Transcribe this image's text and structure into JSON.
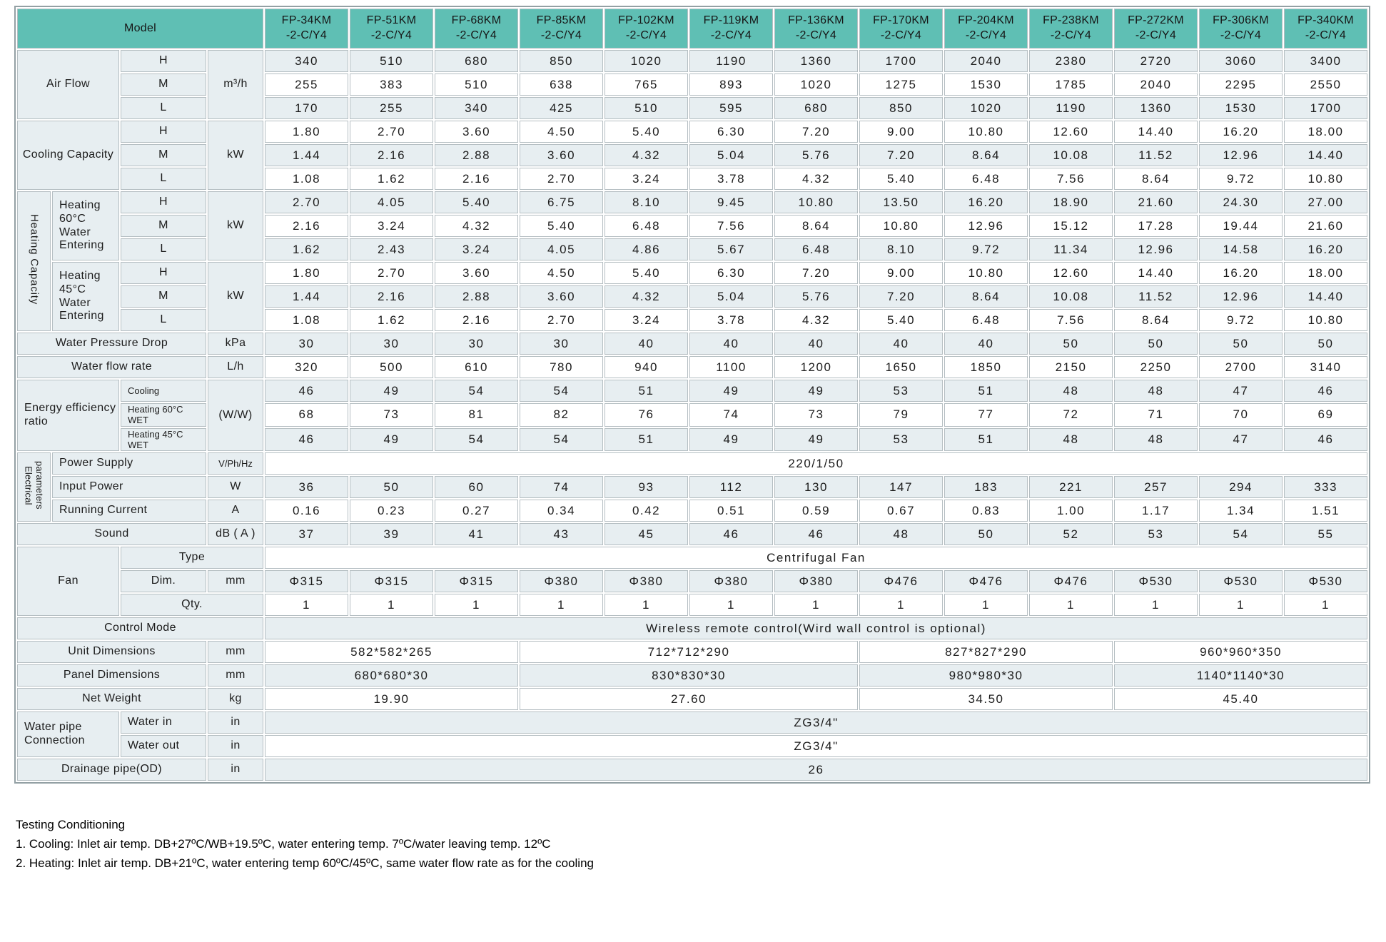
{
  "colors": {
    "header_teal": "#5FBFB4",
    "row_stripe": "#E7EEF1"
  },
  "table": {
    "header": {
      "model_label": "Model",
      "models": [
        {
          "name": "FP-34KM",
          "suffix": "-2-C/Y4"
        },
        {
          "name": "FP-51KM",
          "suffix": "-2-C/Y4"
        },
        {
          "name": "FP-68KM",
          "suffix": "-2-C/Y4"
        },
        {
          "name": "FP-85KM",
          "suffix": "-2-C/Y4"
        },
        {
          "name": "FP-102KM",
          "suffix": "-2-C/Y4"
        },
        {
          "name": "FP-119KM",
          "suffix": "-2-C/Y4"
        },
        {
          "name": "FP-136KM",
          "suffix": "-2-C/Y4"
        },
        {
          "name": "FP-170KM",
          "suffix": "-2-C/Y4"
        },
        {
          "name": "FP-204KM",
          "suffix": "-2-C/Y4"
        },
        {
          "name": "FP-238KM",
          "suffix": "-2-C/Y4"
        },
        {
          "name": "FP-272KM",
          "suffix": "-2-C/Y4"
        },
        {
          "name": "FP-306KM",
          "suffix": "-2-C/Y4"
        },
        {
          "name": "FP-340KM",
          "suffix": "-2-C/Y4"
        }
      ]
    },
    "rows": [
      {
        "s": "l",
        "labels": [
          {
            "t": "Air Flow",
            "c": 2,
            "r": 3
          },
          {
            "t": "H"
          },
          {
            "t": "m³/h",
            "r": 3
          }
        ],
        "values": [
          "340",
          "510",
          "680",
          "850",
          "1020",
          "1190",
          "1360",
          "1700",
          "2040",
          "2380",
          "2720",
          "3060",
          "3400"
        ]
      },
      {
        "s": "w",
        "labels": [
          {
            "t": "M"
          }
        ],
        "values": [
          "255",
          "383",
          "510",
          "638",
          "765",
          "893",
          "1020",
          "1275",
          "1530",
          "1785",
          "2040",
          "2295",
          "2550"
        ]
      },
      {
        "s": "l",
        "labels": [
          {
            "t": "L"
          }
        ],
        "values": [
          "170",
          "255",
          "340",
          "425",
          "510",
          "595",
          "680",
          "850",
          "1020",
          "1190",
          "1360",
          "1530",
          "1700"
        ]
      },
      {
        "s": "w",
        "labels": [
          {
            "t": "Cooling Capacity",
            "c": 2,
            "r": 3
          },
          {
            "t": "H"
          },
          {
            "t": "kW",
            "r": 3
          }
        ],
        "values": [
          "1.80",
          "2.70",
          "3.60",
          "4.50",
          "5.40",
          "6.30",
          "7.20",
          "9.00",
          "10.80",
          "12.60",
          "14.40",
          "16.20",
          "18.00"
        ]
      },
      {
        "s": "l",
        "labels": [
          {
            "t": "M"
          }
        ],
        "values": [
          "1.44",
          "2.16",
          "2.88",
          "3.60",
          "4.32",
          "5.04",
          "5.76",
          "7.20",
          "8.64",
          "10.08",
          "11.52",
          "12.96",
          "14.40"
        ]
      },
      {
        "s": "w",
        "labels": [
          {
            "t": "L"
          }
        ],
        "values": [
          "1.08",
          "1.62",
          "2.16",
          "2.70",
          "3.24",
          "3.78",
          "4.32",
          "5.40",
          "6.48",
          "7.56",
          "8.64",
          "9.72",
          "10.80"
        ]
      },
      {
        "s": "l",
        "labels": [
          {
            "t": "Heating Capacity",
            "r": 6,
            "k": "vtc"
          },
          {
            "t": "Heating 60°C Water Entering",
            "r": 3,
            "k": "lft"
          },
          {
            "t": "H"
          },
          {
            "t": "kW",
            "r": 3
          }
        ],
        "values": [
          "2.70",
          "4.05",
          "5.40",
          "6.75",
          "8.10",
          "9.45",
          "10.80",
          "13.50",
          "16.20",
          "18.90",
          "21.60",
          "24.30",
          "27.00"
        ]
      },
      {
        "s": "w",
        "labels": [
          {
            "t": "M"
          }
        ],
        "values": [
          "2.16",
          "3.24",
          "4.32",
          "5.40",
          "6.48",
          "7.56",
          "8.64",
          "10.80",
          "12.96",
          "15.12",
          "17.28",
          "19.44",
          "21.60"
        ]
      },
      {
        "s": "l",
        "labels": [
          {
            "t": "L"
          }
        ],
        "values": [
          "1.62",
          "2.43",
          "3.24",
          "4.05",
          "4.86",
          "5.67",
          "6.48",
          "8.10",
          "9.72",
          "11.34",
          "12.96",
          "14.58",
          "16.20"
        ]
      },
      {
        "s": "w",
        "labels": [
          {
            "t": "Heating 45°C Water Entering",
            "r": 3,
            "k": "lft"
          },
          {
            "t": "H"
          },
          {
            "t": "kW",
            "r": 3
          }
        ],
        "values": [
          "1.80",
          "2.70",
          "3.60",
          "4.50",
          "5.40",
          "6.30",
          "7.20",
          "9.00",
          "10.80",
          "12.60",
          "14.40",
          "16.20",
          "18.00"
        ]
      },
      {
        "s": "l",
        "labels": [
          {
            "t": "M"
          }
        ],
        "values": [
          "1.44",
          "2.16",
          "2.88",
          "3.60",
          "4.32",
          "5.04",
          "5.76",
          "7.20",
          "8.64",
          "10.08",
          "11.52",
          "12.96",
          "14.40"
        ]
      },
      {
        "s": "w",
        "labels": [
          {
            "t": "L"
          }
        ],
        "values": [
          "1.08",
          "1.62",
          "2.16",
          "2.70",
          "3.24",
          "3.78",
          "4.32",
          "5.40",
          "6.48",
          "7.56",
          "8.64",
          "9.72",
          "10.80"
        ]
      },
      {
        "s": "l",
        "labels": [
          {
            "t": "Water Pressure Drop",
            "c": 3
          },
          {
            "t": "kPa"
          }
        ],
        "values": [
          "30",
          "30",
          "30",
          "30",
          "40",
          "40",
          "40",
          "40",
          "40",
          "50",
          "50",
          "50",
          "50"
        ]
      },
      {
        "s": "w",
        "labels": [
          {
            "t": "Water flow rate",
            "c": 3
          },
          {
            "t": "L/h"
          }
        ],
        "values": [
          "320",
          "500",
          "610",
          "780",
          "940",
          "1100",
          "1200",
          "1650",
          "1850",
          "2150",
          "2250",
          "2700",
          "3140"
        ]
      },
      {
        "s": "l",
        "labels": [
          {
            "t": "Energy efficiency ratio",
            "c": 2,
            "r": 3,
            "k": "lft"
          },
          {
            "t": "Cooling",
            "k": "sm lft"
          },
          {
            "t": "(W/W)",
            "r": 3
          }
        ],
        "values": [
          "46",
          "49",
          "54",
          "54",
          "51",
          "49",
          "49",
          "53",
          "51",
          "48",
          "48",
          "47",
          "46"
        ]
      },
      {
        "s": "w",
        "labels": [
          {
            "t": "Heating 60°C WET",
            "k": "sm lft"
          }
        ],
        "values": [
          "68",
          "73",
          "81",
          "82",
          "76",
          "74",
          "73",
          "79",
          "77",
          "72",
          "71",
          "70",
          "69"
        ]
      },
      {
        "s": "l",
        "labels": [
          {
            "t": "Heating 45°C WET",
            "k": "sm lft"
          }
        ],
        "values": [
          "46",
          "49",
          "54",
          "54",
          "51",
          "49",
          "49",
          "53",
          "51",
          "48",
          "48",
          "47",
          "46"
        ]
      },
      {
        "s": "w",
        "labels": [
          {
            "t": "Electrical parameters",
            "r": 3,
            "k": "vtc sm2"
          },
          {
            "t": "Power Supply",
            "c": 2,
            "k": "lft"
          },
          {
            "t": "V/Ph/Hz",
            "k": "sm"
          }
        ],
        "values": [
          {
            "t": "220/1/50",
            "c": 13
          }
        ]
      },
      {
        "s": "l",
        "labels": [
          {
            "t": "Input Power",
            "c": 2,
            "k": "lft"
          },
          {
            "t": "W"
          }
        ],
        "values": [
          "36",
          "50",
          "60",
          "74",
          "93",
          "112",
          "130",
          "147",
          "183",
          "221",
          "257",
          "294",
          "333"
        ]
      },
      {
        "s": "w",
        "labels": [
          {
            "t": "Running Current",
            "c": 2,
            "k": "lft"
          },
          {
            "t": "A"
          }
        ],
        "values": [
          "0.16",
          "0.23",
          "0.27",
          "0.34",
          "0.42",
          "0.51",
          "0.59",
          "0.67",
          "0.83",
          "1.00",
          "1.17",
          "1.34",
          "1.51"
        ]
      },
      {
        "s": "l",
        "labels": [
          {
            "t": "Sound",
            "c": 3
          },
          {
            "t": "dB ( A )"
          }
        ],
        "values": [
          "37",
          "39",
          "41",
          "43",
          "45",
          "46",
          "46",
          "48",
          "50",
          "52",
          "53",
          "54",
          "55"
        ]
      },
      {
        "s": "w",
        "labels": [
          {
            "t": "Fan",
            "c": 2,
            "r": 3
          },
          {
            "t": "Type",
            "c": 2
          }
        ],
        "values": [
          {
            "t": "Centrifugal Fan",
            "c": 13
          }
        ]
      },
      {
        "s": "l",
        "labels": [
          {
            "t": "Dim."
          },
          {
            "t": "mm"
          }
        ],
        "values": [
          "Φ315",
          "Φ315",
          "Φ315",
          "Φ380",
          "Φ380",
          "Φ380",
          "Φ380",
          "Φ476",
          "Φ476",
          "Φ476",
          "Φ530",
          "Φ530",
          "Φ530"
        ]
      },
      {
        "s": "w",
        "labels": [
          {
            "t": "Qty.",
            "c": 2
          }
        ],
        "values": [
          "1",
          "1",
          "1",
          "1",
          "1",
          "1",
          "1",
          "1",
          "1",
          "1",
          "1",
          "1",
          "1"
        ]
      },
      {
        "s": "l",
        "labels": [
          {
            "t": "Control Mode",
            "c": 4
          }
        ],
        "values": [
          {
            "t": "Wireless remote control(Wird wall control is optional)",
            "c": 13
          }
        ]
      },
      {
        "s": "w",
        "labels": [
          {
            "t": "Unit Dimensions",
            "c": 3
          },
          {
            "t": "mm"
          }
        ],
        "values": [
          {
            "t": "582*582*265",
            "c": 3
          },
          {
            "t": "712*712*290",
            "c": 4
          },
          {
            "t": "827*827*290",
            "c": 3
          },
          {
            "t": "960*960*350",
            "c": 3
          }
        ]
      },
      {
        "s": "l",
        "labels": [
          {
            "t": "Panel Dimensions",
            "c": 3
          },
          {
            "t": "mm"
          }
        ],
        "values": [
          {
            "t": "680*680*30",
            "c": 3
          },
          {
            "t": "830*830*30",
            "c": 4
          },
          {
            "t": "980*980*30",
            "c": 3
          },
          {
            "t": "1140*1140*30",
            "c": 3
          }
        ]
      },
      {
        "s": "w",
        "labels": [
          {
            "t": "Net Weight",
            "c": 3
          },
          {
            "t": "kg"
          }
        ],
        "values": [
          {
            "t": "19.90",
            "c": 3
          },
          {
            "t": "27.60",
            "c": 4
          },
          {
            "t": "34.50",
            "c": 3
          },
          {
            "t": "45.40",
            "c": 3
          }
        ]
      },
      {
        "s": "l",
        "labels": [
          {
            "t": "Water pipe Connection",
            "c": 2,
            "r": 2,
            "k": "lft"
          },
          {
            "t": "Water in",
            "k": "lft"
          },
          {
            "t": "in"
          }
        ],
        "values": [
          {
            "t": "ZG3/4\"",
            "c": 13
          }
        ]
      },
      {
        "s": "w",
        "labels": [
          {
            "t": "Water out",
            "k": "lft"
          },
          {
            "t": "in"
          }
        ],
        "values": [
          {
            "t": "ZG3/4\"",
            "c": 13
          }
        ]
      },
      {
        "s": "l",
        "labels": [
          {
            "t": "Drainage pipe(OD)",
            "c": 3
          },
          {
            "t": "in"
          }
        ],
        "values": [
          {
            "t": "26",
            "c": 13
          }
        ]
      }
    ]
  },
  "footer": {
    "title": "Testing Conditioning",
    "line1": "1. Cooling: Inlet air temp. DB+27ºC/WB+19.5ºC, water entering temp. 7ºC/water leaving temp. 12ºC",
    "line2": "2. Heating: Inlet air temp. DB+21ºC, water entering temp 60ºC/45ºC, same water flow rate as for the cooling"
  }
}
